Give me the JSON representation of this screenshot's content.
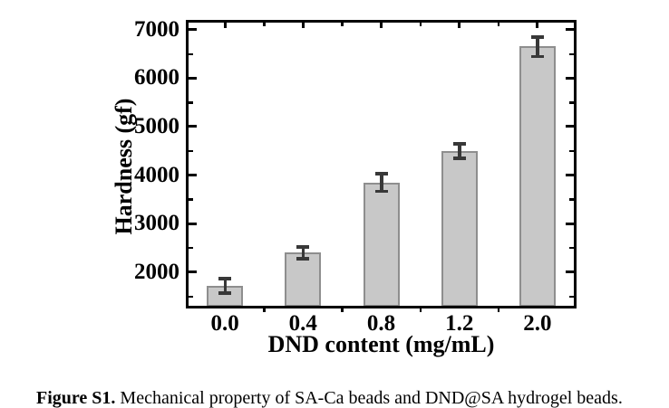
{
  "figure": {
    "caption_label": "Figure S1.",
    "caption_text": " Mechanical property of SA-Ca beads and DND@SA hydrogel beads."
  },
  "chart_data": {
    "type": "bar",
    "title": "",
    "xlabel": "DND content (mg/mL)",
    "ylabel": "Hardness (gf)",
    "categories": [
      "0.0",
      "0.4",
      "0.8",
      "1.2",
      "2.0"
    ],
    "values": [
      1720,
      2400,
      3850,
      4500,
      6650
    ],
    "errors": [
      150,
      120,
      180,
      150,
      200
    ],
    "ylim": [
      1250,
      7200
    ],
    "yticks": [
      2000,
      3000,
      4000,
      5000,
      6000,
      7000
    ],
    "y_minor_step": 500,
    "grid": false,
    "legend": "none",
    "colors": {
      "bar_fill": "#c8c8c8",
      "bar_border": "#8e8e8e",
      "error_bar": "#383838",
      "axis": "#000000",
      "text": "#000000"
    }
  }
}
